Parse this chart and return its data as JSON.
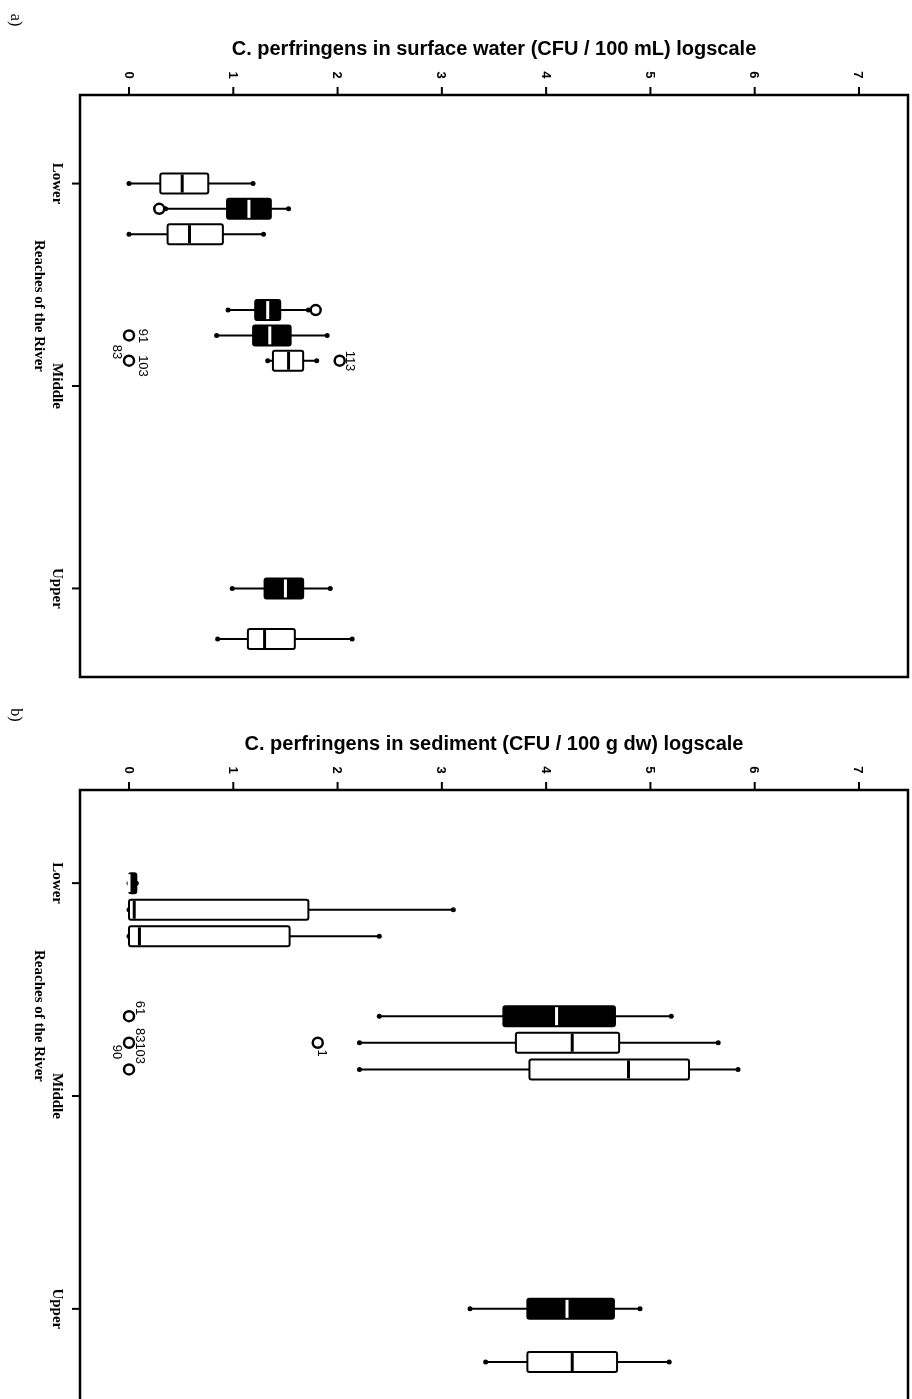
{
  "chart_data": [
    {
      "type": "box",
      "orientation": "horizontal",
      "title": "a)",
      "xlabel": "C. perfringens in surface water (CFU / 100 mL) logscale",
      "ylabel": "Reaches of the River",
      "xlim": [
        -0.47,
        7.47
      ],
      "xticks": [
        0,
        1,
        2,
        3,
        4,
        5,
        6,
        7
      ],
      "categories": [
        null,
        null,
        null,
        "Lower",
        null,
        null,
        null,
        null,
        null,
        null,
        null,
        "Middle",
        null,
        null,
        null,
        null,
        null,
        null,
        null,
        "Upper",
        null,
        null,
        null
      ],
      "boxes": [
        null,
        null,
        null,
        {
          "low": 0,
          "q1": 0.3,
          "median": 0.51,
          "q3": 0.76,
          "high": 1.19
        },
        {
          "low": 0.35,
          "q1": 0.94,
          "median": 1.15,
          "q3": 1.36,
          "high": 1.53,
          "outliers": [
            0.29
          ]
        },
        {
          "low": 0,
          "q1": 0.37,
          "median": 0.58,
          "q3": 0.9,
          "high": 1.29
        },
        null,
        null,
        {
          "low": 0.95,
          "q1": 1.21,
          "median": 1.33,
          "q3": 1.45,
          "high": 1.72,
          "outliers": [
            1.79
          ]
        },
        {
          "low": 0.84,
          "q1": 1.19,
          "median": 1.35,
          "q3": 1.55,
          "high": 1.9,
          "outliers": [
            0
          ]
        },
        {
          "low": 1.33,
          "q1": 1.38,
          "median": 1.53,
          "q3": 1.67,
          "high": 1.8,
          "outliers": [
            0,
            2.02
          ]
        },
        null,
        null,
        null,
        null,
        null,
        null,
        null,
        null,
        {
          "low": 0.99,
          "q1": 1.3,
          "median": 1.5,
          "q3": 1.67,
          "high": 1.93
        },
        null,
        {
          "low": 0.85,
          "q1": 1.14,
          "median": 1.3,
          "q3": 1.59,
          "high": 2.14
        },
        null
      ],
      "colors": [
        null,
        null,
        null,
        "#ffffff",
        "#000000",
        "#ffffff",
        null,
        null,
        "#000000",
        "#000000",
        "#ffffff",
        null,
        null,
        null,
        null,
        null,
        null,
        null,
        null,
        "#000000",
        null,
        "#ffffff",
        null
      ],
      "annotations": [
        "91",
        "103",
        "83",
        "113"
      ]
    },
    {
      "type": "box",
      "orientation": "horizontal",
      "title": "b)",
      "xlabel": "C. perfringens in sediment (CFU / 100 g dw) logscale",
      "ylabel": "Reaches of the River",
      "xlim": [
        -0.47,
        7.47
      ],
      "xticks": [
        0,
        1,
        2,
        3,
        4,
        5,
        6,
        7
      ],
      "categories": [
        null,
        null,
        null,
        "Lower",
        null,
        null,
        null,
        null,
        null,
        null,
        null,
        "Middle",
        null,
        null,
        null,
        null,
        null,
        null,
        null,
        "Upper",
        null,
        null,
        null
      ],
      "boxes": [
        null,
        null,
        null,
        {
          "low": 0,
          "q1": 0,
          "median": 0,
          "q3": 0.07,
          "high": 0.07
        },
        {
          "low": 0,
          "q1": 0,
          "median": 0.05,
          "q3": 1.72,
          "high": 3.11
        },
        {
          "low": 0,
          "q1": 0,
          "median": 0.1,
          "q3": 1.54,
          "high": 2.4
        },
        null,
        null,
        {
          "low": 2.4,
          "q1": 3.59,
          "median": 4.1,
          "q3": 4.66,
          "high": 5.2,
          "outliers": [
            0
          ]
        },
        {
          "low": 2.21,
          "q1": 3.71,
          "median": 4.25,
          "q3": 4.7,
          "high": 5.65,
          "outliers": [
            0,
            1.81
          ]
        },
        {
          "low": 2.21,
          "q1": 3.84,
          "median": 4.79,
          "q3": 5.37,
          "high": 5.84,
          "outliers": [
            0
          ]
        },
        null,
        null,
        null,
        null,
        null,
        null,
        null,
        null,
        {
          "low": 3.27,
          "q1": 3.82,
          "median": 4.2,
          "q3": 4.65,
          "high": 4.9
        },
        null,
        {
          "low": 3.42,
          "q1": 3.82,
          "median": 4.25,
          "q3": 4.68,
          "high": 5.18
        },
        null
      ],
      "colors": [
        null,
        null,
        null,
        "#000000",
        "#ffffff",
        "#ffffff",
        null,
        null,
        "#000000",
        "#ffffff",
        "#ffffff",
        null,
        null,
        null,
        null,
        null,
        null,
        null,
        null,
        "#000000",
        null,
        "#ffffff",
        null
      ],
      "annotations": [
        "61",
        "83103",
        "90",
        "1"
      ]
    }
  ]
}
